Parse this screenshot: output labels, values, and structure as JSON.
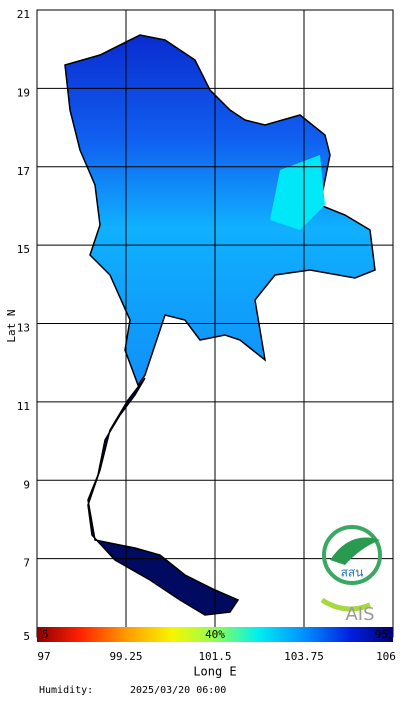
{
  "map": {
    "axis_labels": {
      "y": "Lat N",
      "x": "Long E"
    },
    "lat_ticks": [
      5,
      7,
      9,
      11,
      13,
      15,
      17,
      19,
      21
    ],
    "lon_ticks": [
      97,
      99.25,
      101.5,
      103.75,
      106
    ],
    "latlim": [
      5,
      21
    ],
    "lonlim": [
      97,
      106
    ],
    "colorbar_labels": [
      "5",
      "40%",
      "95"
    ],
    "variable": "Humidity:",
    "timestamp": "2025/03/20 06:00",
    "logos": [
      "สสน",
      "AIS"
    ]
  }
}
